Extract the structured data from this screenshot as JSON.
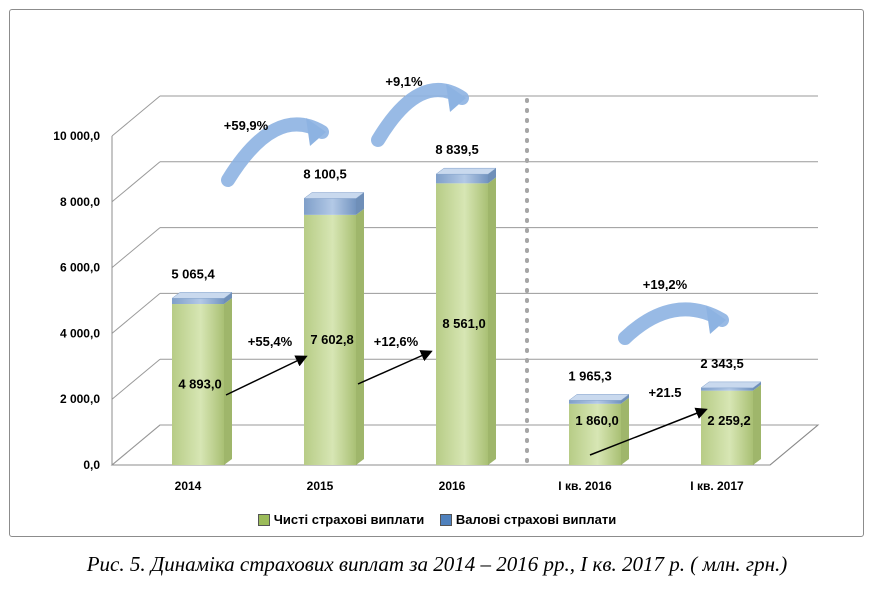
{
  "chart_data": {
    "type": "bar",
    "categories": [
      "2014",
      "2015",
      "2016",
      "І кв. 2016",
      "І кв. 2017"
    ],
    "series": [
      {
        "name": "Чисті страхові виплати",
        "values": [
          4893.0,
          7602.8,
          8561.0,
          1860.0,
          2259.2
        ],
        "labels": [
          "4 893,0",
          "7 602,8",
          "8 561,0",
          "1 860,0",
          "2 259,2"
        ]
      },
      {
        "name": "Валові страхові виплати",
        "values": [
          5065.4,
          8100.5,
          8839.5,
          1965.3,
          2343.5
        ],
        "labels": [
          "5 065,4",
          "8 100,5",
          "8 839,5",
          "1 965,3",
          "2 343,5"
        ]
      }
    ],
    "ylim": [
      0,
      10000
    ],
    "yticks": [
      0,
      2000,
      4000,
      6000,
      8000,
      10000
    ],
    "ytick_labels": [
      "0,0",
      "2 000,0",
      "4 000,0",
      "6 000,0",
      "8 000,0",
      "10 000,0"
    ],
    "grid": true,
    "legend_position": "bottom",
    "colors": {
      "net": "#c3d69b",
      "net_side": "#9fb66b",
      "gross": "#95b3d7",
      "gross_side": "#6f8fb8",
      "arrow": "#8db3e2"
    },
    "annotations": {
      "growth_gross": [
        {
          "from": "2014",
          "to": "2015",
          "text": "+59,9%"
        },
        {
          "from": "2015",
          "to": "2016",
          "text": "+9,1%"
        },
        {
          "from": "І кв. 2016",
          "to": "І кв. 2017",
          "text": "+19,2%"
        }
      ],
      "growth_net": [
        {
          "from": "2014",
          "to": "2015",
          "text": "+55,4%"
        },
        {
          "from": "2015",
          "to": "2016",
          "text": "+12,6%"
        },
        {
          "from": "І кв. 2016",
          "to": "І кв. 2017",
          "text": "+21.5"
        }
      ]
    }
  },
  "legend": {
    "net_label": "Чисті страхові виплати",
    "gross_label": "Валові страхові виплати"
  },
  "caption": "Рис. 5. Динаміка страхових виплат за 2014 – 2016 рр.,  І кв. 2017 р. ( млн. грн.)"
}
